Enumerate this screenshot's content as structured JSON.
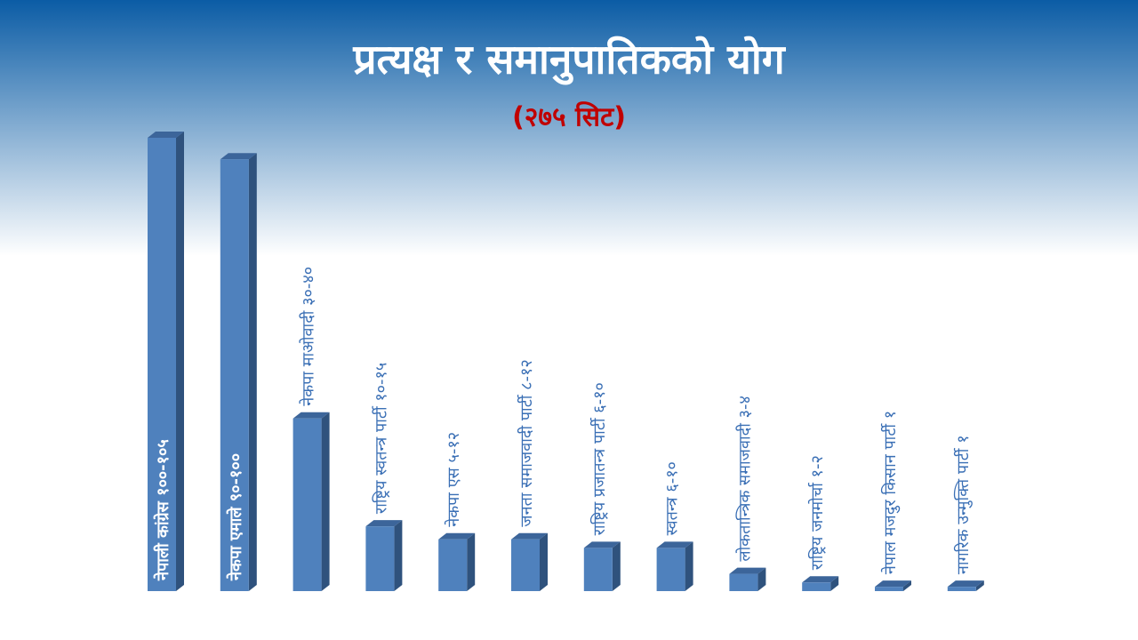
{
  "chart_data": {
    "type": "bar3d",
    "title": "प्रत्यक्ष र समानुपातिकको योग",
    "subtitle": "(२७५ सिट)",
    "categories": [
      "नेपाली कांग्रेस १००-१०५",
      "नेकपा एमाले ९०-१००",
      "नेकपा माओवादी ३०-४०",
      "राष्ट्रिय स्वतन्त्र पार्टी १०-१५",
      "नेकपा एस ५-१२",
      "जनता समाजवादी पार्टी ८-१२",
      "राष्ट्रिय प्रजातन्त्र पार्टी ६-१०",
      "स्वतन्त्र ६-१०",
      "लोकतान्त्रिक समाजवादी ३-४",
      "राष्ट्रिय जनमोर्चा १-२",
      "नेपाल मजदुर किसान पार्टी १",
      "नागरिक उन्मुक्ति पार्टी १"
    ],
    "values": [
      105,
      100,
      40,
      15,
      12,
      12,
      10,
      10,
      4,
      2,
      1,
      1
    ],
    "color": "#4f81bd"
  }
}
